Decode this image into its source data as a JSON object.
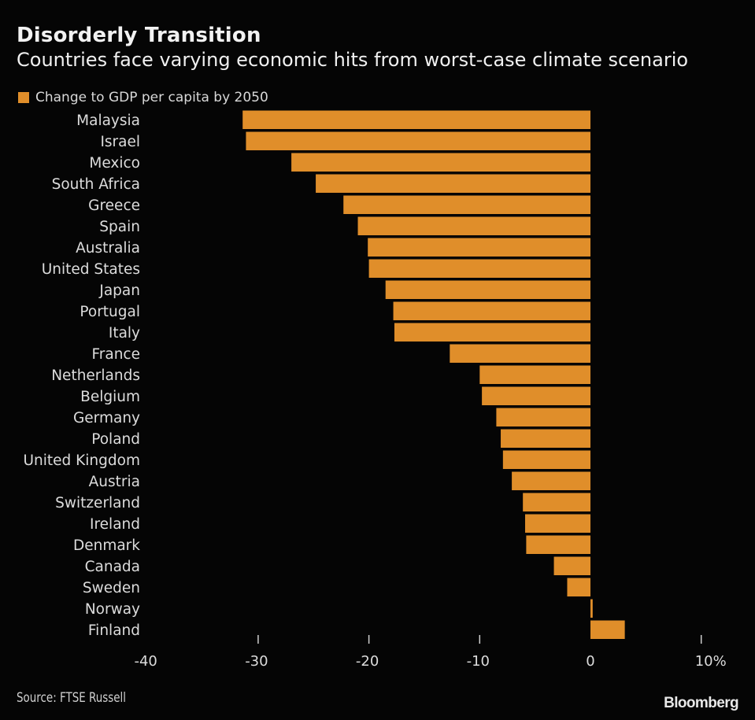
{
  "chart_data": {
    "type": "bar",
    "orientation": "horizontal",
    "title": "Disorderly Transition",
    "subtitle": "Countries face varying economic hits from worst-case climate scenario",
    "legend": [
      {
        "name": "Change to GDP per capita by 2050",
        "color": "#e08e2a"
      }
    ],
    "legend_position": "top-left",
    "categories": [
      "Malaysia",
      "Israel",
      "Mexico",
      "South Africa",
      "Greece",
      "Spain",
      "Australia",
      "United States",
      "Japan",
      "Portugal",
      "Italy",
      "France",
      "Netherlands",
      "Belgium",
      "Germany",
      "Poland",
      "United Kingdom",
      "Austria",
      "Switzerland",
      "Ireland",
      "Denmark",
      "Canada",
      "Sweden",
      "Norway",
      "Finland"
    ],
    "series": [
      {
        "name": "Change to GDP per capita by 2050",
        "values": [
          -31.4,
          -31.1,
          -27.0,
          -24.8,
          -22.3,
          -21.0,
          -20.1,
          -20.0,
          -18.5,
          -17.8,
          -17.7,
          -12.7,
          -10.0,
          -9.8,
          -8.5,
          -8.1,
          -7.9,
          -7.1,
          -6.1,
          -5.9,
          -5.8,
          -3.3,
          -2.1,
          0.2,
          3.1
        ]
      }
    ],
    "xlim": [
      -40,
      10
    ],
    "xticks": [
      -40,
      -30,
      -20,
      -10,
      0,
      10
    ],
    "xtick_labels": [
      "-40",
      "-30",
      "-20",
      "-10",
      "0",
      "10%"
    ],
    "xlabel": "",
    "ylabel": "",
    "grid": false
  },
  "header": {
    "title": "Disorderly Transition",
    "subtitle": "Countries face varying economic hits from worst-case climate scenario",
    "legend_label": "Change to GDP per capita by 2050"
  },
  "footer": {
    "source": "Source: FTSE Russell",
    "brand": "Bloomberg"
  },
  "colors": {
    "bar": "#e08e2a",
    "background": "#050505",
    "text": "#e6e6e6"
  }
}
